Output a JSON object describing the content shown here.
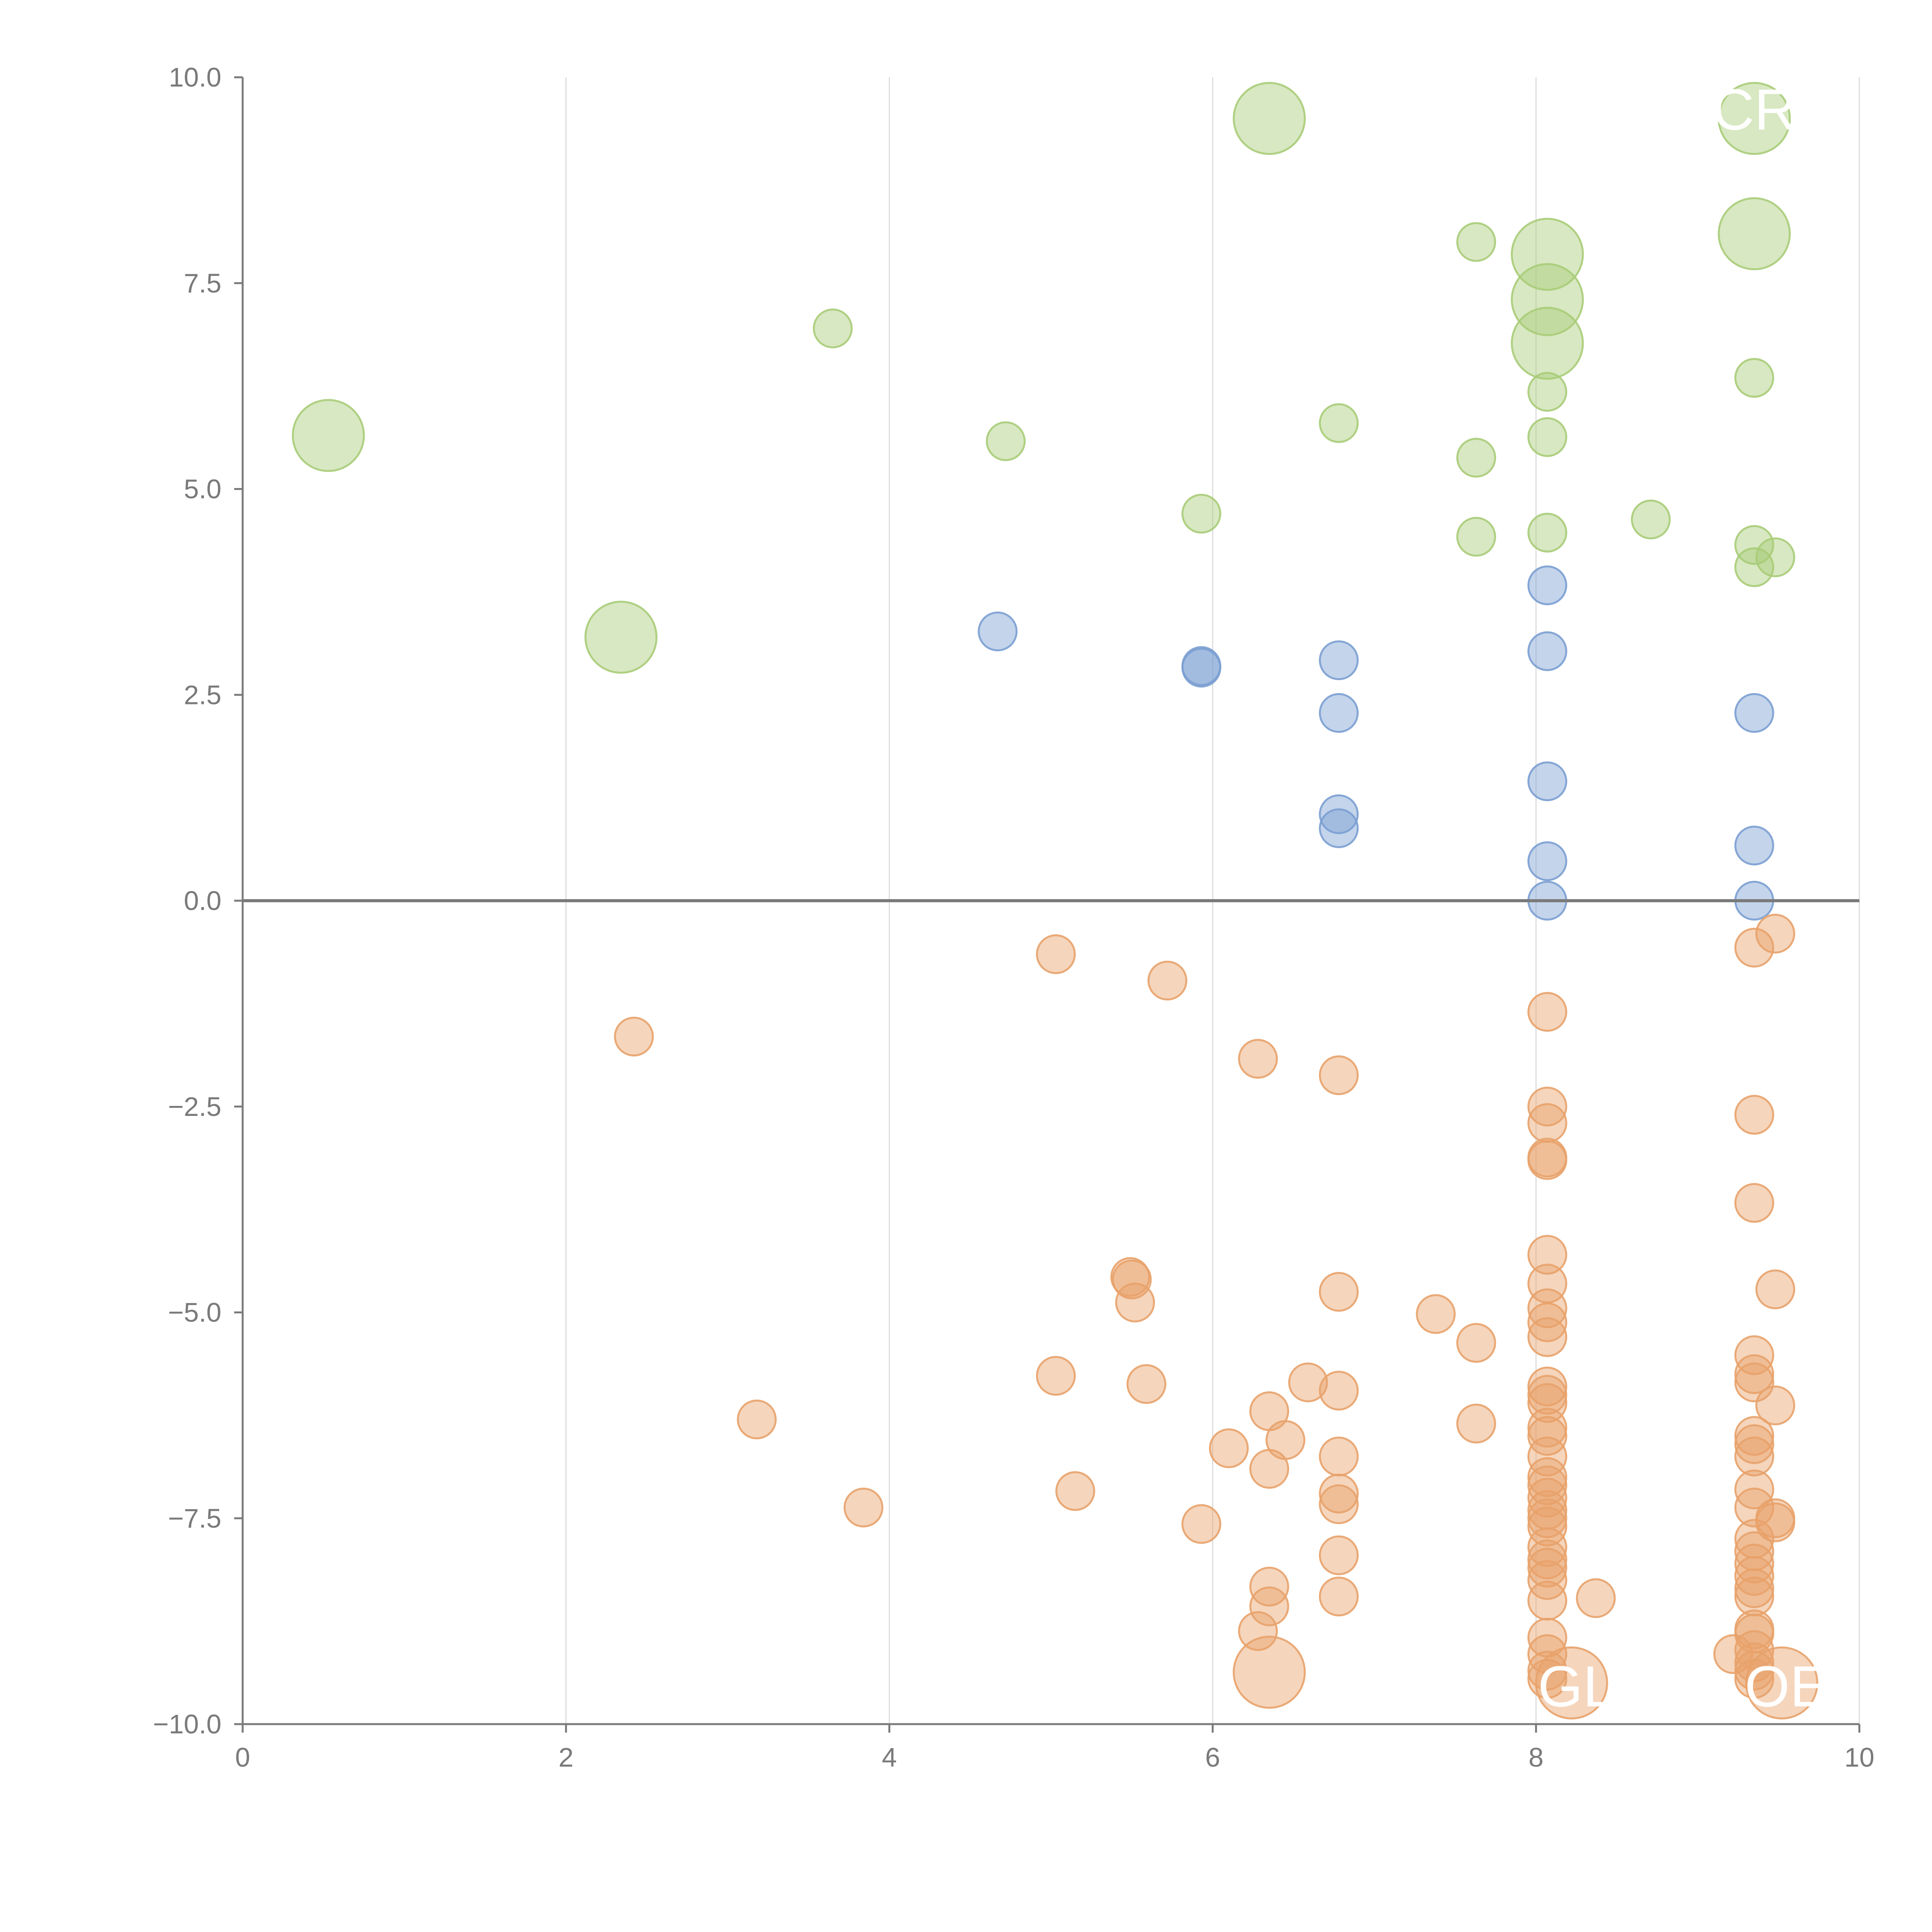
{
  "chart_data": {
    "type": "scatter",
    "title": "",
    "xlabel": "",
    "ylabel": "",
    "xlim": [
      0,
      10
    ],
    "ylim": [
      -10,
      10
    ],
    "x_ticks": [
      0,
      2,
      4,
      6,
      8,
      10
    ],
    "x_tick_labels": [
      "0",
      "2",
      "4",
      "6",
      "8",
      "10"
    ],
    "y_ticks": [
      10,
      7.5,
      5,
      2.5,
      0,
      -2.5,
      -5,
      -7.5,
      -10
    ],
    "y_tick_labels": [
      "10.0",
      "7.5",
      "5.0",
      "2.5",
      "0.0",
      "−2.5",
      "−5.0",
      "−7.5",
      "−10.0"
    ],
    "grid": "vertical",
    "reference_line_y": 0,
    "colors": {
      "green": "#a9cc78",
      "blue": "#7b9fd2",
      "orange": "#e8a26a",
      "axis": "#7a7a7a",
      "grid": "#dcdcdc",
      "zero_line": "#7a7a7a"
    },
    "annotations": [
      {
        "text": "CR",
        "x": 9.35,
        "y": 9.6
      },
      {
        "text": "GL",
        "x": 8.25,
        "y": -9.55
      },
      {
        "text": "OE",
        "x": 9.55,
        "y": -9.55
      }
    ],
    "series": [
      {
        "name": "green",
        "color": "#a9cc78",
        "points": [
          [
            0.53,
            5.65,
            "L"
          ],
          [
            2.34,
            3.2,
            "L"
          ],
          [
            3.65,
            6.95,
            "S"
          ],
          [
            4.72,
            5.58,
            "S"
          ],
          [
            5.93,
            4.7,
            "S"
          ],
          [
            6.35,
            9.5,
            "L"
          ],
          [
            6.78,
            5.8,
            "S"
          ],
          [
            7.63,
            8.0,
            "S"
          ],
          [
            7.63,
            5.38,
            "S"
          ],
          [
            7.63,
            4.42,
            "S"
          ],
          [
            8.07,
            7.85,
            "L"
          ],
          [
            8.07,
            7.3,
            "L"
          ],
          [
            8.07,
            6.77,
            "L"
          ],
          [
            8.07,
            6.18,
            "S"
          ],
          [
            8.07,
            5.63,
            "S"
          ],
          [
            8.07,
            4.47,
            "S"
          ],
          [
            8.71,
            4.63,
            "S"
          ],
          [
            9.35,
            9.5,
            "L"
          ],
          [
            9.35,
            8.1,
            "L"
          ],
          [
            9.35,
            6.35,
            "S"
          ],
          [
            9.35,
            4.32,
            "S"
          ],
          [
            9.35,
            4.05,
            "S"
          ],
          [
            9.48,
            4.17,
            "S"
          ]
        ]
      },
      {
        "name": "blue",
        "color": "#7b9fd2",
        "points": [
          [
            4.67,
            3.27,
            "S"
          ],
          [
            5.93,
            2.83,
            "S"
          ],
          [
            5.93,
            2.85,
            "S"
          ],
          [
            6.78,
            2.92,
            "S"
          ],
          [
            6.78,
            2.28,
            "S"
          ],
          [
            6.78,
            1.05,
            "S"
          ],
          [
            6.78,
            0.88,
            "S"
          ],
          [
            8.07,
            3.83,
            "S"
          ],
          [
            8.07,
            3.03,
            "S"
          ],
          [
            8.07,
            1.45,
            "S"
          ],
          [
            8.07,
            0.48,
            "S"
          ],
          [
            8.07,
            0.0,
            "S"
          ],
          [
            9.35,
            2.28,
            "S"
          ],
          [
            9.35,
            0.67,
            "S"
          ],
          [
            9.35,
            0.0,
            "S"
          ]
        ]
      },
      {
        "name": "orange",
        "color": "#e8a26a",
        "points": [
          [
            2.42,
            -1.65,
            "S"
          ],
          [
            3.18,
            -6.3,
            "S"
          ],
          [
            3.84,
            -7.37,
            "S"
          ],
          [
            5.03,
            -0.65,
            "S"
          ],
          [
            5.03,
            -5.77,
            "S"
          ],
          [
            5.15,
            -7.17,
            "S"
          ],
          [
            5.49,
            -4.57,
            "S"
          ],
          [
            5.5,
            -4.6,
            "S"
          ],
          [
            5.52,
            -4.88,
            "S"
          ],
          [
            5.59,
            -5.87,
            "S"
          ],
          [
            5.72,
            -0.97,
            "S"
          ],
          [
            5.93,
            -7.57,
            "S"
          ],
          [
            6.1,
            -6.65,
            "S"
          ],
          [
            6.28,
            -1.92,
            "S"
          ],
          [
            6.28,
            -8.87,
            "S"
          ],
          [
            6.35,
            -6.2,
            "S"
          ],
          [
            6.35,
            -6.9,
            "S"
          ],
          [
            6.35,
            -8.33,
            "S"
          ],
          [
            6.35,
            -8.57,
            "S"
          ],
          [
            6.35,
            -9.37,
            "L"
          ],
          [
            6.45,
            -6.55,
            "S"
          ],
          [
            6.59,
            -5.85,
            "S"
          ],
          [
            6.78,
            -2.12,
            "S"
          ],
          [
            6.78,
            -4.75,
            "S"
          ],
          [
            6.78,
            -5.95,
            "S"
          ],
          [
            6.78,
            -6.75,
            "S"
          ],
          [
            6.78,
            -7.2,
            "S"
          ],
          [
            6.78,
            -7.33,
            "S"
          ],
          [
            6.78,
            -7.95,
            "S"
          ],
          [
            6.78,
            -8.45,
            "S"
          ],
          [
            7.38,
            -5.02,
            "S"
          ],
          [
            7.63,
            -5.37,
            "S"
          ],
          [
            7.63,
            -6.35,
            "S"
          ],
          [
            8.07,
            -1.35,
            "S"
          ],
          [
            8.07,
            -2.5,
            "S"
          ],
          [
            8.07,
            -2.7,
            "S"
          ],
          [
            8.07,
            -3.12,
            "S"
          ],
          [
            8.07,
            -3.15,
            "S"
          ],
          [
            8.07,
            -4.3,
            "S"
          ],
          [
            8.07,
            -4.65,
            "S"
          ],
          [
            8.07,
            -4.95,
            "S"
          ],
          [
            8.07,
            -5.12,
            "S"
          ],
          [
            8.07,
            -5.3,
            "S"
          ],
          [
            8.07,
            -5.9,
            "S"
          ],
          [
            8.07,
            -6.0,
            "S"
          ],
          [
            8.07,
            -6.1,
            "S"
          ],
          [
            8.07,
            -6.4,
            "S"
          ],
          [
            8.07,
            -6.5,
            "S"
          ],
          [
            8.07,
            -6.75,
            "S"
          ],
          [
            8.07,
            -7.0,
            "S"
          ],
          [
            8.07,
            -7.1,
            "S"
          ],
          [
            8.07,
            -7.25,
            "S"
          ],
          [
            8.07,
            -7.4,
            "S"
          ],
          [
            8.07,
            -7.5,
            "S"
          ],
          [
            8.07,
            -7.6,
            "S"
          ],
          [
            8.07,
            -7.85,
            "S"
          ],
          [
            8.07,
            -8.0,
            "S"
          ],
          [
            8.07,
            -8.1,
            "S"
          ],
          [
            8.07,
            -8.25,
            "S"
          ],
          [
            8.07,
            -8.5,
            "S"
          ],
          [
            8.07,
            -8.95,
            "S"
          ],
          [
            8.07,
            -9.15,
            "S"
          ],
          [
            8.07,
            -9.35,
            "S"
          ],
          [
            8.07,
            -9.45,
            "S"
          ],
          [
            8.22,
            -9.5,
            "L"
          ],
          [
            8.37,
            -8.47,
            "S"
          ],
          [
            9.22,
            -9.15,
            "S"
          ],
          [
            9.35,
            -0.57,
            "S"
          ],
          [
            9.35,
            -2.6,
            "S"
          ],
          [
            9.35,
            -3.67,
            "S"
          ],
          [
            9.35,
            -5.52,
            "S"
          ],
          [
            9.35,
            -5.75,
            "S"
          ],
          [
            9.35,
            -5.85,
            "S"
          ],
          [
            9.35,
            -6.5,
            "S"
          ],
          [
            9.35,
            -6.6,
            "S"
          ],
          [
            9.35,
            -6.75,
            "S"
          ],
          [
            9.35,
            -7.15,
            "S"
          ],
          [
            9.35,
            -7.37,
            "S"
          ],
          [
            9.35,
            -7.75,
            "S"
          ],
          [
            9.35,
            -7.9,
            "S"
          ],
          [
            9.35,
            -8.05,
            "S"
          ],
          [
            9.35,
            -8.2,
            "S"
          ],
          [
            9.35,
            -8.35,
            "S"
          ],
          [
            9.35,
            -8.45,
            "S"
          ],
          [
            9.35,
            -8.85,
            "S"
          ],
          [
            9.35,
            -8.9,
            "S"
          ],
          [
            9.35,
            -9.1,
            "S"
          ],
          [
            9.35,
            -9.25,
            "S"
          ],
          [
            9.35,
            -9.35,
            "S"
          ],
          [
            9.35,
            -9.45,
            "S"
          ],
          [
            9.48,
            -0.4,
            "S"
          ],
          [
            9.48,
            -4.72,
            "S"
          ],
          [
            9.48,
            -6.13,
            "S"
          ],
          [
            9.48,
            -7.5,
            "S"
          ],
          [
            9.48,
            -7.55,
            "S"
          ],
          [
            9.52,
            -9.5,
            "L"
          ]
        ]
      }
    ]
  }
}
